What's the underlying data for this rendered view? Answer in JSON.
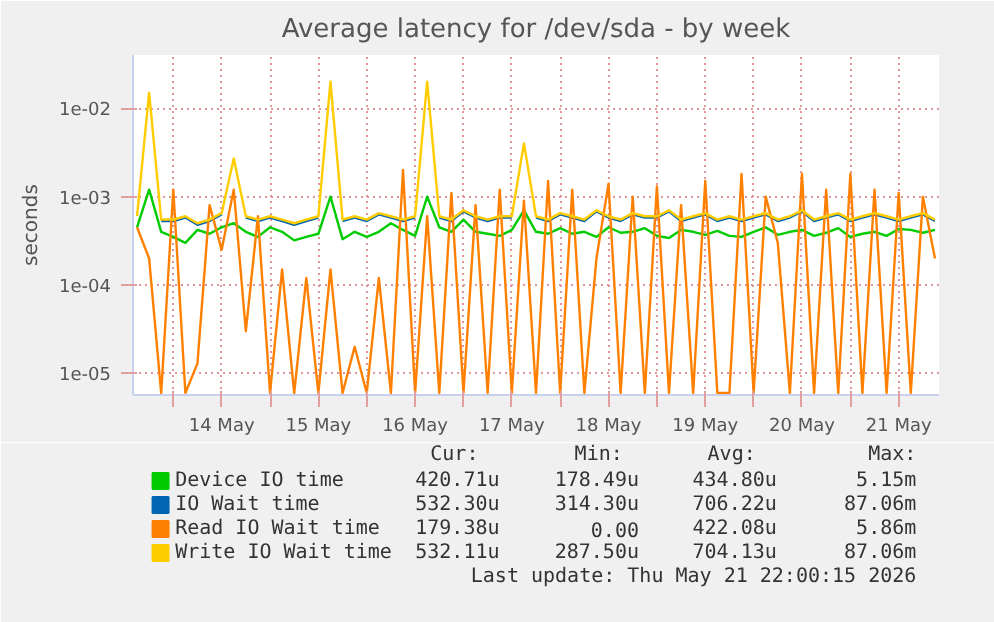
{
  "chart_data": {
    "type": "line",
    "title": "Average latency for /dev/sda - by week",
    "ylabel": "seconds",
    "log": true,
    "grid": true,
    "legend": "bottom",
    "xlim": [
      "2026-05-13T14:00",
      "2026-05-21T22:00"
    ],
    "ylim": [
      5.7e-06,
      0.04
    ],
    "yticks": [
      {
        "value": 1e-05,
        "label": "1e-05"
      },
      {
        "value": 0.0001,
        "label": "1e-04"
      },
      {
        "value": 0.001,
        "label": "1e-03"
      },
      {
        "value": 0.01,
        "label": "1e-02"
      }
    ],
    "xticks": [
      {
        "value": "2026-05-14T00:00",
        "label": null
      },
      {
        "value": "2026-05-14T12:00",
        "label": "14 May"
      },
      {
        "value": "2026-05-15T00:00",
        "label": null
      },
      {
        "value": "2026-05-15T12:00",
        "label": "15 May"
      },
      {
        "value": "2026-05-16T00:00",
        "label": null
      },
      {
        "value": "2026-05-16T12:00",
        "label": "16 May"
      },
      {
        "value": "2026-05-17T00:00",
        "label": null
      },
      {
        "value": "2026-05-17T12:00",
        "label": "17 May"
      },
      {
        "value": "2026-05-18T00:00",
        "label": null
      },
      {
        "value": "2026-05-18T12:00",
        "label": "18 May"
      },
      {
        "value": "2026-05-19T00:00",
        "label": null
      },
      {
        "value": "2026-05-19T12:00",
        "label": "19 May"
      },
      {
        "value": "2026-05-20T00:00",
        "label": null
      },
      {
        "value": "2026-05-20T12:00",
        "label": "20 May"
      },
      {
        "value": "2026-05-21T00:00",
        "label": null
      },
      {
        "value": "2026-05-21T12:00",
        "label": "21 May"
      }
    ],
    "x": [
      "2026-05-13T15:00",
      "2026-05-13T18:00",
      "2026-05-13T21:00",
      "2026-05-14T00:00",
      "2026-05-14T03:00",
      "2026-05-14T06:00",
      "2026-05-14T09:00",
      "2026-05-14T12:00",
      "2026-05-14T15:00",
      "2026-05-14T18:00",
      "2026-05-14T21:00",
      "2026-05-15T00:00",
      "2026-05-15T03:00",
      "2026-05-15T06:00",
      "2026-05-15T09:00",
      "2026-05-15T12:00",
      "2026-05-15T15:00",
      "2026-05-15T18:00",
      "2026-05-15T21:00",
      "2026-05-16T00:00",
      "2026-05-16T03:00",
      "2026-05-16T06:00",
      "2026-05-16T09:00",
      "2026-05-16T12:00",
      "2026-05-16T15:00",
      "2026-05-16T18:00",
      "2026-05-16T21:00",
      "2026-05-17T00:00",
      "2026-05-17T03:00",
      "2026-05-17T06:00",
      "2026-05-17T09:00",
      "2026-05-17T12:00",
      "2026-05-17T15:00",
      "2026-05-17T18:00",
      "2026-05-17T21:00",
      "2026-05-18T00:00",
      "2026-05-18T03:00",
      "2026-05-18T06:00",
      "2026-05-18T09:00",
      "2026-05-18T12:00",
      "2026-05-18T15:00",
      "2026-05-18T18:00",
      "2026-05-18T21:00",
      "2026-05-19T00:00",
      "2026-05-19T03:00",
      "2026-05-19T06:00",
      "2026-05-19T09:00",
      "2026-05-19T12:00",
      "2026-05-19T15:00",
      "2026-05-19T18:00",
      "2026-05-19T21:00",
      "2026-05-20T00:00",
      "2026-05-20T03:00",
      "2026-05-20T06:00",
      "2026-05-20T09:00",
      "2026-05-20T12:00",
      "2026-05-20T15:00",
      "2026-05-20T18:00",
      "2026-05-20T21:00",
      "2026-05-21T00:00",
      "2026-05-21T03:00",
      "2026-05-21T06:00",
      "2026-05-21T09:00",
      "2026-05-21T12:00",
      "2026-05-21T15:00",
      "2026-05-21T18:00",
      "2026-05-21T21:00"
    ],
    "series": [
      {
        "name": "Device IO time",
        "color": "#00cc00",
        "values": [
          0.00045,
          0.0012,
          0.0004,
          0.00035,
          0.0003,
          0.00042,
          0.00038,
          0.00045,
          0.0005,
          0.0004,
          0.00035,
          0.00045,
          0.0004,
          0.00032,
          0.00035,
          0.00038,
          0.001,
          0.00033,
          0.0004,
          0.00035,
          0.0004,
          0.0005,
          0.00042,
          0.00036,
          0.001,
          0.00045,
          0.0004,
          0.00055,
          0.0004,
          0.00038,
          0.00036,
          0.00042,
          0.0007,
          0.0004,
          0.00038,
          0.00044,
          0.00038,
          0.0004,
          0.00035,
          0.00045,
          0.00039,
          0.0004,
          0.00044,
          0.00036,
          0.00034,
          0.00042,
          0.0004,
          0.00037,
          0.00041,
          0.00036,
          0.00035,
          0.0004,
          0.00045,
          0.00037,
          0.0004,
          0.00042,
          0.00036,
          0.00039,
          0.00044,
          0.00035,
          0.00038,
          0.0004,
          0.00036,
          0.00043,
          0.00042,
          0.00039,
          0.00042
        ]
      },
      {
        "name": "IO Wait time",
        "color": "#0066b3",
        "values": [
          null,
          null,
          0.00053,
          0.00053,
          0.00058,
          0.00048,
          0.00053,
          0.00063,
          null,
          0.00058,
          0.00053,
          0.00058,
          0.00053,
          0.00048,
          0.00053,
          0.00058,
          null,
          0.00053,
          0.00058,
          0.00053,
          0.00063,
          0.00058,
          0.00053,
          0.00058,
          null,
          0.00058,
          0.00053,
          0.00068,
          0.00058,
          0.00053,
          0.00058,
          0.00058,
          null,
          0.00058,
          0.00053,
          0.00063,
          0.00058,
          0.00053,
          0.00068,
          0.00058,
          0.00053,
          0.00063,
          0.00058,
          0.00058,
          0.00068,
          0.00053,
          0.00058,
          0.00063,
          0.00053,
          0.00058,
          0.00053,
          0.00058,
          0.00063,
          0.00053,
          0.00058,
          0.00068,
          0.00053,
          0.00058,
          0.00063,
          0.00053,
          0.00058,
          0.00063,
          0.00058,
          0.00053,
          0.00058,
          0.00063,
          0.00053
        ]
      },
      {
        "name": "Read IO Wait time",
        "color": "#ff8000",
        "values": [
          0.00045,
          0.0002,
          6e-06,
          0.0012,
          6e-06,
          1.3e-05,
          0.0008,
          0.00025,
          0.0012,
          3e-05,
          0.0006,
          6e-06,
          0.00015,
          6e-06,
          0.00012,
          6e-06,
          0.00015,
          6e-06,
          2e-05,
          6e-06,
          0.00012,
          6e-06,
          0.002,
          6e-06,
          0.0006,
          6e-06,
          0.0011,
          6e-06,
          0.0008,
          6e-06,
          0.0012,
          6e-06,
          0.0009,
          6e-06,
          0.0015,
          6e-06,
          0.0012,
          6e-06,
          0.0002,
          0.0014,
          6e-06,
          0.001,
          6e-06,
          0.0013,
          6e-06,
          0.0008,
          6e-06,
          0.0015,
          6e-06,
          6e-06,
          0.0018,
          6e-06,
          0.001,
          0.0003,
          6e-06,
          0.0018,
          6e-06,
          0.0012,
          6e-06,
          0.0018,
          6e-06,
          0.0012,
          6e-06,
          0.0011,
          6e-06,
          0.001,
          0.0002
        ]
      },
      {
        "name": "Write IO Wait time",
        "color": "#ffcc00",
        "values": [
          0.0006,
          0.015,
          0.00055,
          0.00055,
          0.0006,
          0.0005,
          0.00055,
          0.00065,
          0.0027,
          0.0006,
          0.00055,
          0.0006,
          0.00055,
          0.0005,
          0.00055,
          0.0006,
          0.02,
          0.00055,
          0.0006,
          0.00055,
          0.00065,
          0.0006,
          0.00055,
          0.0006,
          0.02,
          0.0006,
          0.00055,
          0.0007,
          0.0006,
          0.00055,
          0.0006,
          0.0006,
          0.004,
          0.0006,
          0.00055,
          0.00065,
          0.0006,
          0.00055,
          0.0007,
          0.0006,
          0.00055,
          0.00065,
          0.0006,
          0.0006,
          0.0007,
          0.00055,
          0.0006,
          0.00065,
          0.00055,
          0.0006,
          0.00055,
          0.0006,
          0.00065,
          0.00055,
          0.0006,
          0.0007,
          0.00055,
          0.0006,
          0.00065,
          0.00055,
          0.0006,
          0.00065,
          0.0006,
          0.00055,
          0.0006,
          0.00065,
          0.00055
        ]
      }
    ],
    "annotations": [
      "Cur:",
      "Min:",
      "Avg:",
      "Max:",
      "420.71u",
      "178.49u",
      "434.80u",
      "5.15m",
      "532.30u",
      "314.30u",
      "706.22u",
      "87.06m",
      "179.38u",
      "0.00",
      "422.08u",
      "5.86m",
      "532.11u",
      "287.50u",
      "704.13u",
      "87.06m",
      "Last update: Thu May 21 22:00:15 2026"
    ]
  }
}
